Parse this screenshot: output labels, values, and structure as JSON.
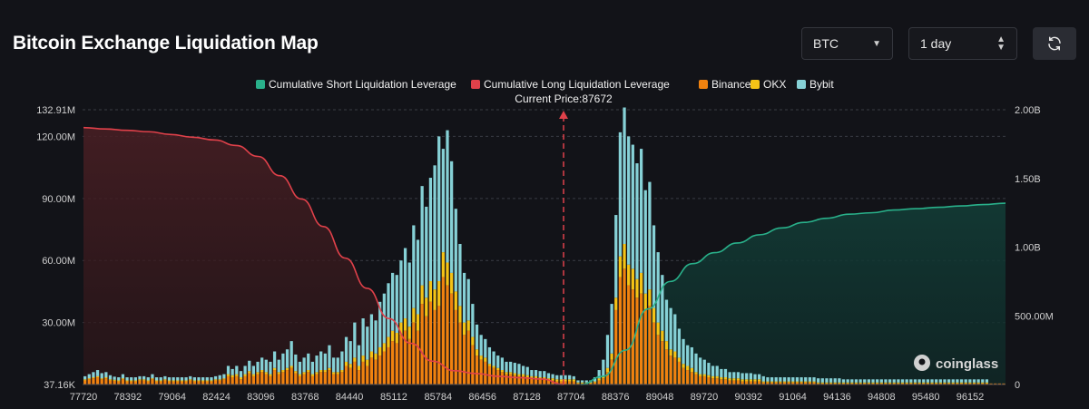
{
  "header": {
    "title": "Bitcoin Exchange Liquidation Map",
    "coin_label": "BTC",
    "range_label": "1 day"
  },
  "icons": {
    "refresh": "refresh-icon",
    "dropdown": "chevron-down-icon",
    "stepper": "up-down-arrows-icon"
  },
  "watermark": {
    "text": "coinglass"
  },
  "chart_data": {
    "type": "bar",
    "title": "Bitcoin Exchange Liquidation Map",
    "current_price_label": "Current Price:87672",
    "current_price": 87672,
    "legend": [
      {
        "name": "Cumulative Short Liquidation Leverage",
        "color": "#29b08a"
      },
      {
        "name": "Cumulative Long Liquidation Leverage",
        "color": "#e0414a"
      },
      {
        "name": "Binance",
        "color": "#f0820f"
      },
      {
        "name": "OKX",
        "color": "#f5c316"
      },
      {
        "name": "Bybit",
        "color": "#86d1d6"
      }
    ],
    "x_ticks": [
      "77720",
      "78392",
      "79064",
      "82424",
      "83096",
      "83768",
      "84440",
      "85112",
      "85784",
      "86456",
      "87128",
      "87704",
      "88376",
      "89048",
      "89720",
      "90392",
      "91064",
      "94136",
      "94808",
      "95480",
      "96152"
    ],
    "y_left_ticks": [
      "37.16K",
      "30.00M",
      "60.00M",
      "90.00M",
      "120.00M",
      "132.91M"
    ],
    "y_right_ticks": [
      "0",
      "500.00M",
      "1.00B",
      "1.50B",
      "2.00B"
    ],
    "y_left_range": [
      0,
      132910000
    ],
    "y_right_range": [
      0,
      2000000000
    ],
    "stacked_bars_millions": {
      "binance": [
        2,
        2.5,
        3,
        3.5,
        2.5,
        3,
        2,
        1.8,
        1.5,
        2.5,
        1.5,
        1.5,
        1.5,
        2,
        2,
        1.5,
        2.5,
        1.5,
        1.5,
        2,
        1.5,
        1.5,
        1.5,
        1.5,
        1.5,
        2,
        1.5,
        1.5,
        1.5,
        1.5,
        1.5,
        2,
        2,
        2.5,
        4,
        3.5,
        4,
        2.5,
        4,
        5.5,
        4,
        5,
        6,
        5,
        4,
        7,
        5,
        6,
        7,
        8,
        5.5,
        4,
        5,
        6,
        4,
        5,
        6,
        6,
        7,
        5,
        5,
        6,
        9,
        8,
        11,
        7,
        11,
        9,
        13,
        12,
        14,
        16,
        18,
        21,
        20,
        24,
        26,
        22,
        30,
        26,
        39,
        33,
        40,
        36,
        38,
        52,
        48,
        44,
        36,
        30,
        24,
        26,
        19,
        14,
        12,
        11,
        9,
        8,
        7,
        6,
        5,
        5,
        4.5,
        4,
        4,
        3.5,
        3,
        3,
        2.5,
        2.5,
        2,
        2,
        1.5,
        1.5,
        1.5,
        1.5,
        1.5,
        0.5,
        0.5,
        0.5,
        0.5,
        1,
        2,
        3,
        6,
        12,
        36,
        52,
        56,
        48,
        46,
        42,
        44,
        36,
        38,
        30,
        24,
        21,
        17,
        14,
        13,
        11,
        8,
        7,
        6,
        5,
        4,
        4,
        3.5,
        3,
        3,
        2.5,
        2.5,
        2,
        2,
        2,
        1.5,
        1.5,
        1.5,
        1.5,
        1.5,
        1,
        1,
        1,
        1,
        1,
        1,
        1,
        1,
        1,
        1,
        1,
        1,
        1,
        0.5,
        0.5,
        0.5,
        0.5,
        0.5,
        0.5,
        0.5,
        0.5,
        0.5,
        0.5,
        0.5,
        0.5,
        0.5,
        0.5,
        0.5,
        0.5,
        0.5,
        0.5,
        0.5,
        0.5,
        0.5,
        0.5,
        0.5,
        0.5,
        0.5,
        0.5,
        0.5,
        0.5,
        0.5,
        0.5,
        0.5,
        0.5,
        0.5,
        0.5,
        0.5,
        0.5,
        0.5,
        0.5,
        0.5,
        0.5,
        0.5,
        0.5,
        0.5,
        0.5,
        0.5
      ],
      "okx": [
        0.5,
        0.5,
        0.5,
        0.5,
        0.5,
        0.5,
        0.5,
        0.5,
        0.5,
        0.5,
        0.5,
        0.5,
        0.5,
        0.5,
        0.5,
        0.5,
        0.5,
        0.5,
        0.5,
        0.5,
        0.5,
        0.5,
        0.5,
        0.5,
        0.5,
        0.5,
        0.5,
        0.5,
        0.5,
        0.5,
        0.5,
        0.5,
        0.5,
        0.5,
        1,
        1,
        1,
        1,
        1,
        1,
        1,
        1,
        1,
        1,
        1,
        1,
        1,
        1,
        1,
        1,
        1,
        1,
        1,
        1,
        1,
        1,
        1,
        1,
        1,
        1,
        1,
        1,
        2,
        2,
        2,
        2,
        3,
        3,
        3,
        3,
        4,
        4,
        5,
        5,
        5,
        6,
        6,
        6,
        7,
        8,
        9,
        9,
        10,
        10,
        12,
        12,
        11,
        10,
        9,
        8,
        6,
        5,
        4,
        3,
        2,
        2,
        1,
        1,
        1,
        1,
        1,
        1,
        1,
        1,
        1,
        1,
        1,
        1,
        1,
        1,
        1,
        1,
        1,
        1,
        1,
        1,
        1,
        0.5,
        0.5,
        0.5,
        0.5,
        0.5,
        1,
        1,
        2,
        3,
        6,
        10,
        12,
        10,
        10,
        9,
        10,
        8,
        8,
        7,
        6,
        5,
        4,
        3,
        3,
        2,
        2,
        2,
        2,
        1,
        1,
        1,
        1,
        1,
        1,
        1,
        1,
        1,
        1,
        1,
        1,
        1,
        1,
        1,
        1,
        0.5,
        0.5,
        0.5,
        0.5,
        0.5,
        0.5,
        0.5,
        0.5,
        0.5,
        0.5,
        0.5,
        0.5,
        0.5,
        0.5,
        0.5,
        0.5,
        0.5,
        0.5,
        0.5,
        0.5,
        0.5,
        0.5,
        0.5,
        0.5,
        0.5,
        0.5,
        0.5,
        0.5,
        0.5,
        0.5,
        0.5,
        0.5,
        0.5,
        0.5,
        0.5,
        0.5,
        0.5,
        0.5,
        0.5,
        0.5,
        0.5,
        0.5,
        0.5,
        0.5,
        0.5,
        0.5,
        0.5,
        0.5,
        0.5,
        0.5,
        0.5,
        0.5,
        0.5,
        0.5
      ],
      "bybit": [
        1.5,
        2,
        2.5,
        3,
        2.5,
        2.5,
        2,
        1.5,
        1.5,
        2,
        1.5,
        1.5,
        1.5,
        1.5,
        1.5,
        1.5,
        2,
        1.5,
        1.5,
        1.5,
        1.5,
        1.5,
        1.5,
        1.5,
        1.5,
        1.5,
        1.5,
        1.5,
        1.5,
        1.5,
        1.5,
        1.5,
        2,
        2,
        4,
        3,
        4,
        3,
        4,
        5,
        4,
        5,
        6,
        6,
        6,
        8,
        6,
        8,
        9,
        12,
        8,
        6,
        7,
        8,
        6,
        8,
        9,
        8,
        11,
        7,
        7,
        9,
        12,
        11,
        17,
        10,
        18,
        16,
        18,
        16,
        22,
        24,
        26,
        28,
        28,
        30,
        34,
        31,
        40,
        36,
        48,
        44,
        50,
        60,
        70,
        50,
        64,
        54,
        40,
        30,
        24,
        20,
        16,
        12,
        10,
        9,
        8,
        7,
        6,
        6,
        5,
        5,
        5,
        5,
        4,
        4,
        3,
        3,
        3,
        3,
        2.5,
        2,
        2,
        2,
        2,
        2,
        1.5,
        1,
        1,
        1,
        1,
        2,
        4,
        8,
        16,
        24,
        40,
        60,
        66,
        62,
        60,
        56,
        60,
        50,
        52,
        40,
        34,
        27,
        20,
        20,
        18,
        14,
        12,
        10,
        10,
        9,
        8,
        7,
        6,
        5,
        5,
        4,
        4,
        3,
        3,
        3,
        3,
        3,
        3,
        2.5,
        2.5,
        2.5,
        2,
        2,
        2,
        2,
        2,
        2,
        2,
        2,
        2,
        2,
        2,
        2,
        2,
        2,
        2,
        2,
        2,
        2,
        1.5,
        1.5,
        1.5,
        1.5,
        1.5,
        1.5,
        1.5,
        1.5,
        1.5,
        1.5,
        1.5,
        1.5,
        1.5,
        1.5,
        1.5,
        1.5,
        1.5,
        1.5,
        1.5,
        1.5,
        1.5,
        1.5,
        1.5,
        1.5,
        1.5,
        1.5,
        1.5,
        1.5,
        1.5,
        1.5,
        1.5,
        1.5,
        1.5,
        1.5,
        1.5,
        1.5,
        1.5
      ]
    },
    "cumulative_long_billions": [
      1.87,
      1.86,
      1.85,
      1.84,
      1.82,
      1.8,
      1.78,
      1.74,
      1.66,
      1.52,
      1.35,
      1.15,
      0.92,
      0.7,
      0.48,
      0.3,
      0.17,
      0.1,
      0.08,
      0.06,
      0.05,
      0.04,
      0.0
    ],
    "cumulative_short_billions": [
      0.0,
      0.06,
      0.25,
      0.55,
      0.75,
      0.88,
      0.96,
      1.03,
      1.09,
      1.14,
      1.18,
      1.21,
      1.24,
      1.25,
      1.27,
      1.28,
      1.29,
      1.3,
      1.31,
      1.32
    ]
  }
}
